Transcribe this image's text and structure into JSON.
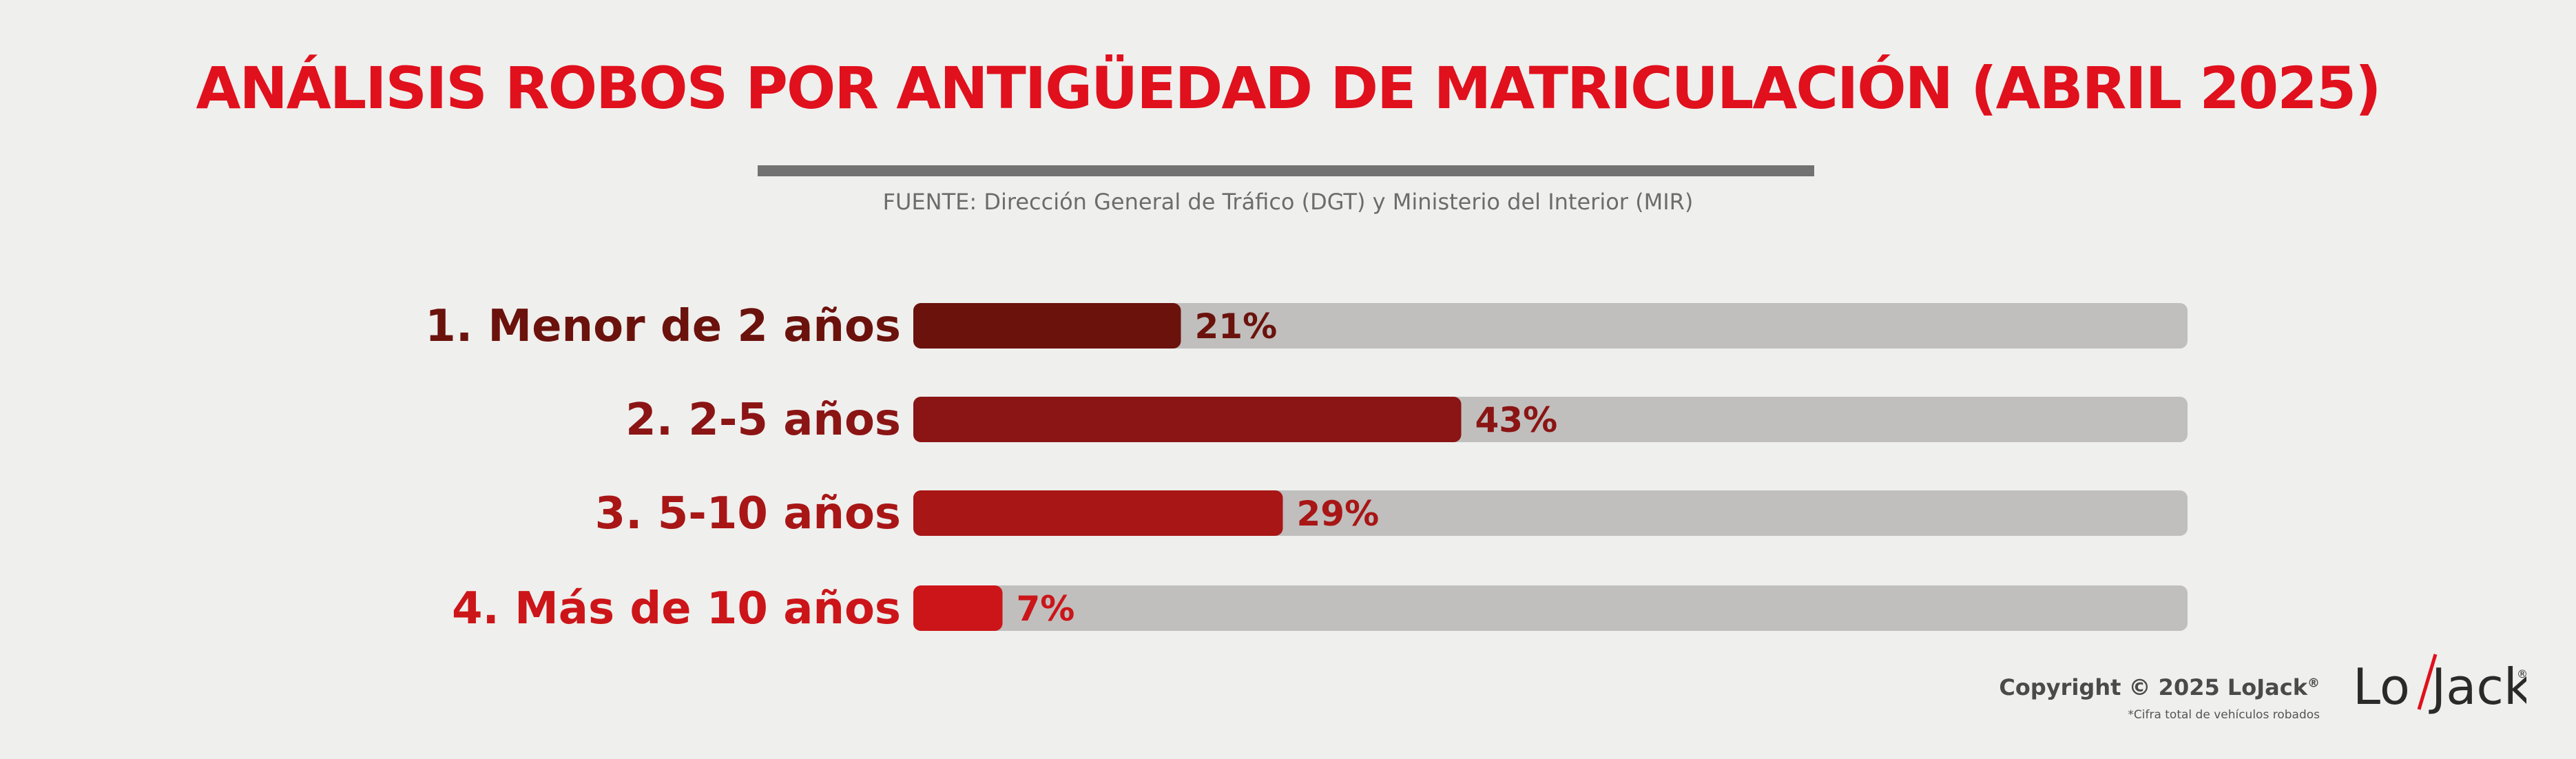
{
  "header": {
    "title": "ANÁLISIS ROBOS POR ANTIGÜEDAD DE MATRICULACIÓN (ABRIL 2025)",
    "source": "FUENTE: Dirección General de Tráfico (DGT) y Ministerio del Interior (MIR)"
  },
  "chart_data": {
    "type": "bar",
    "orientation": "horizontal",
    "categories": [
      "1. Menor de 2 años",
      "2. 2-5 años",
      "3. 5-10 años",
      "4. Más de 10 años"
    ],
    "values": [
      21,
      43,
      29,
      7
    ],
    "value_labels": [
      "21%",
      "43%",
      "29%",
      "7%"
    ],
    "xlim": [
      0,
      100
    ],
    "grid": false,
    "title": "ANÁLISIS ROBOS POR ANTIGÜEDAD DE MATRICULACIÓN (ABRIL 2025)",
    "colors": {
      "bars": [
        "#6b120d",
        "#8a1514",
        "#a81616",
        "#cc1519"
      ],
      "track": "#c0bfbd"
    }
  },
  "footer": {
    "copyright_text": "Copyright © 2025 LoJack",
    "copyright_reg": "®",
    "footnote": "*Cifra total de vehículos robados",
    "logo_text": "Lo/Jack",
    "logo_reg": "®"
  }
}
